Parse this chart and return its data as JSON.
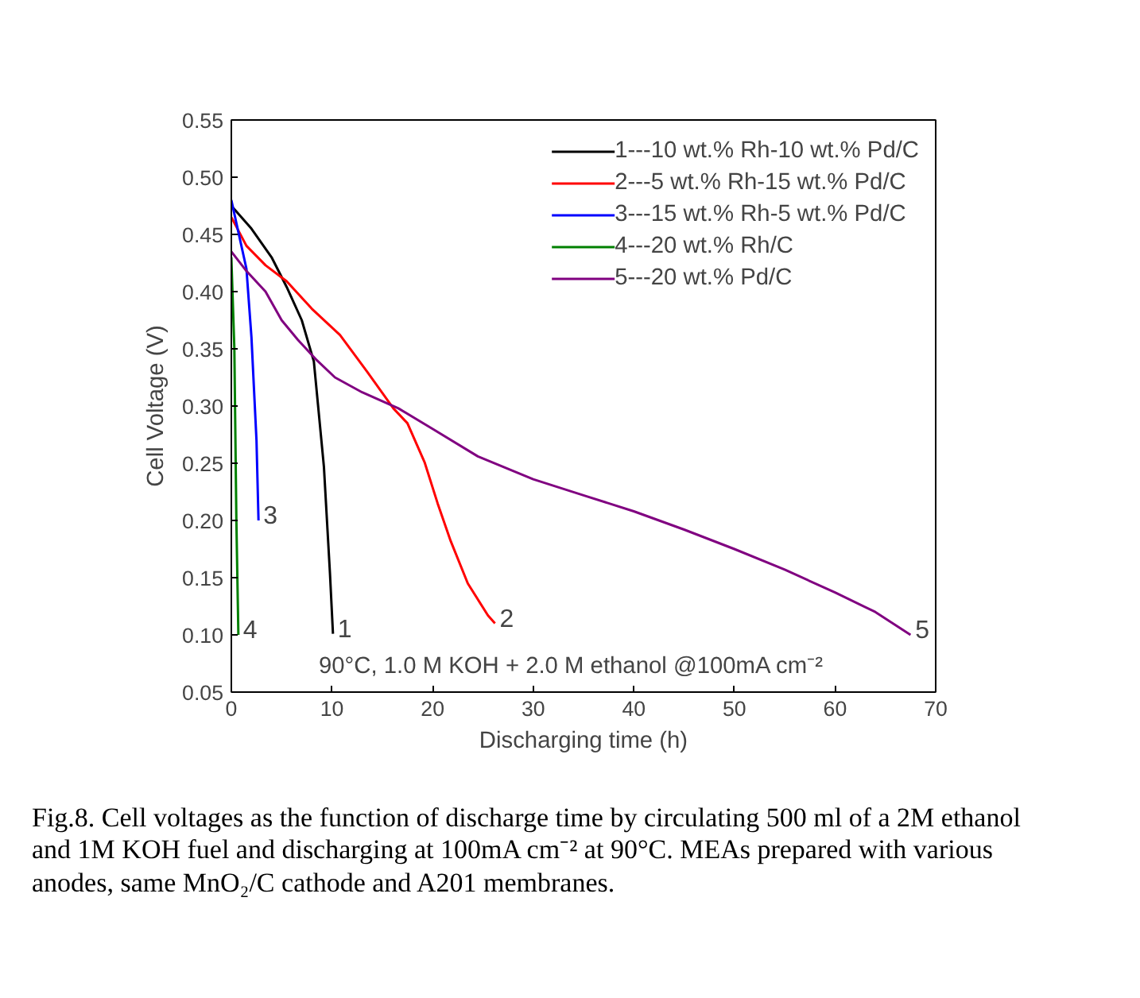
{
  "chart_data": {
    "type": "line",
    "xlabel": "Discharging time (h)",
    "ylabel": "Cell Voltage (V)",
    "xlim": [
      0,
      70
    ],
    "xticks": [
      0,
      10,
      20,
      30,
      40,
      50,
      60,
      70
    ],
    "ylim": [
      0.05,
      0.55
    ],
    "yticks": [
      0.05,
      {
        "value": 0.1,
        "label": "0.10"
      },
      0.15,
      {
        "value": 0.2,
        "label": "0.20"
      },
      0.25,
      {
        "value": 0.3,
        "label": "0.30"
      },
      0.35,
      {
        "value": 0.4,
        "label": "0.40"
      },
      0.45,
      {
        "value": 0.5,
        "label": "0.50"
      },
      0.55
    ],
    "grid": false,
    "legend": "top right",
    "line_style": "solid",
    "marker": "none",
    "series": [
      {
        "name": "1---10 wt.% Rh-10 wt.% Pd/C",
        "color": "#000000",
        "x": [
          0,
          2,
          4,
          5.5,
          7,
          8.2,
          9.2,
          9.8,
          10.1
        ],
        "values": [
          0.475,
          0.455,
          0.43,
          0.404,
          0.375,
          0.339,
          0.247,
          0.154,
          0.101
        ]
      },
      {
        "name": "2---5 wt.% Rh-15 wt.% Pd/C",
        "color": "#ff0000",
        "x": [
          0,
          1.5,
          3.4,
          5.5,
          8,
          10.8,
          13.5,
          16.1,
          17.5,
          19.2,
          20.5,
          21.8,
          23.5,
          25.5,
          26.2
        ],
        "values": [
          0.465,
          0.44,
          0.423,
          0.409,
          0.385,
          0.362,
          0.33,
          0.298,
          0.285,
          0.251,
          0.215,
          0.182,
          0.145,
          0.117,
          0.11
        ]
      },
      {
        "name": "3---15 wt.% Rh-5 wt.% Pd/C",
        "color": "#0000ff",
        "x": [
          0,
          0.5,
          1.5,
          2.0,
          2.5,
          2.7
        ],
        "values": [
          0.48,
          0.46,
          0.42,
          0.36,
          0.27,
          0.2
        ]
      },
      {
        "name": "4---20 wt.% Rh/C",
        "color": "#008000",
        "x": [
          0,
          0.3,
          0.5,
          0.7
        ],
        "values": [
          0.43,
          0.35,
          0.2,
          0.1
        ]
      },
      {
        "name": "5---20 wt.% Pd/C",
        "color": "#800080",
        "x": [
          0,
          1.5,
          3.4,
          5,
          6.6,
          8.5,
          10.3,
          13,
          16.6,
          20,
          24.5,
          30,
          35,
          40,
          45,
          50,
          55,
          60,
          64,
          67.5
        ],
        "values": [
          0.435,
          0.418,
          0.4,
          0.375,
          0.358,
          0.34,
          0.325,
          0.312,
          0.298,
          0.28,
          0.256,
          0.236,
          0.222,
          0.208,
          0.192,
          0.175,
          0.157,
          0.137,
          0.12,
          0.1
        ]
      }
    ],
    "annotations": [
      {
        "text": "1",
        "x": 10.1,
        "y": 0.101
      },
      {
        "text": "2",
        "x": 26.2,
        "y": 0.11
      },
      {
        "text": "3",
        "x": 2.7,
        "y": 0.2
      },
      {
        "text": "4",
        "x": 0.7,
        "y": 0.1
      },
      {
        "text": "5",
        "x": 67.5,
        "y": 0.1
      },
      "90°C, 1.0 M KOH + 2.0 M ethanol @100mA cm⁻²",
      "Fig.8. Cell voltages as the function of discharge time by circulating 500 ml of a 2M ethanol and 1M KOH fuel and discharging at 100mA cm⁻² at 90°C.  MEAs prepared with various anodes, same MnO₂/C cathode and A201 membranes."
    ]
  }
}
